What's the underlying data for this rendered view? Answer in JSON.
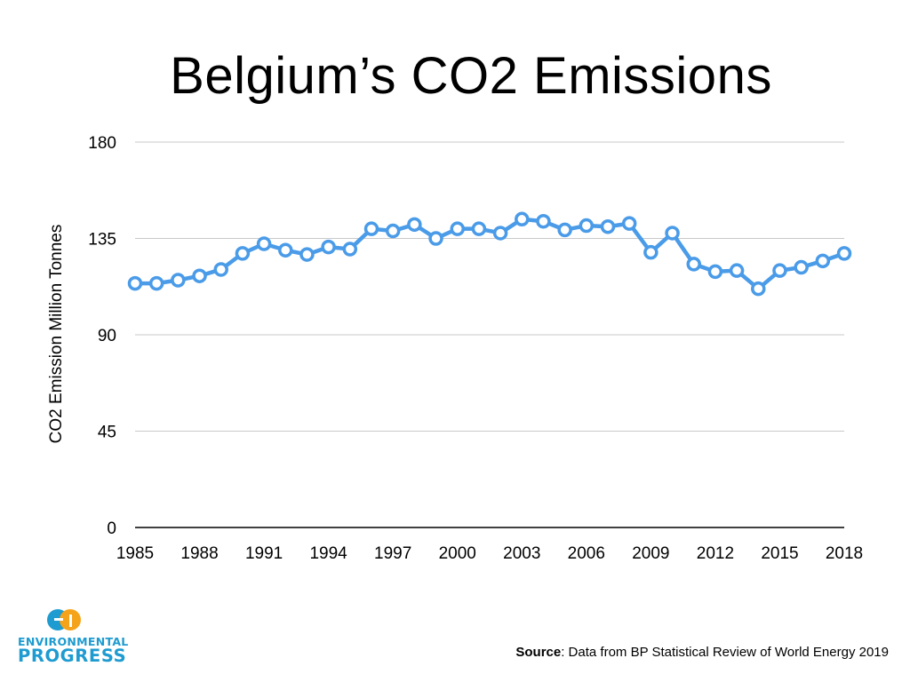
{
  "colors": {
    "line": "#4a9be8",
    "grid": "#c8c8c8",
    "axis": "#000000",
    "logo": "#1e9bd0",
    "logo_accent": "#f5a31a"
  },
  "chart_data": {
    "type": "line",
    "title": "Belgium’s CO2 Emissions",
    "xlabel": "",
    "ylabel": "CO2 Emission Million Tonnes",
    "ylim": [
      0,
      180
    ],
    "yticks": [
      0,
      45,
      90,
      135,
      180
    ],
    "xticks": [
      1985,
      1988,
      1991,
      1994,
      1997,
      2000,
      2003,
      2006,
      2009,
      2012,
      2015,
      2018
    ],
    "xlim": [
      1985,
      2018
    ],
    "grid": true,
    "series": [
      {
        "name": "Belgium",
        "x": [
          1985,
          1986,
          1987,
          1988,
          1989,
          1990,
          1991,
          1992,
          1993,
          1994,
          1995,
          1996,
          1997,
          1998,
          1999,
          2000,
          2001,
          2002,
          2003,
          2004,
          2005,
          2006,
          2007,
          2008,
          2009,
          2010,
          2011,
          2012,
          2013,
          2014,
          2015,
          2016,
          2017,
          2018
        ],
        "values": [
          114,
          114,
          115.5,
          117.5,
          120.5,
          128,
          132.5,
          129.5,
          127.5,
          131,
          130,
          139.5,
          138.5,
          141.5,
          135,
          139.5,
          139.5,
          137.5,
          144,
          143,
          139,
          141,
          140.5,
          142,
          128.5,
          137.5,
          123,
          119.5,
          120,
          111.5,
          120,
          121.5,
          124.5,
          128
        ]
      }
    ]
  },
  "logo": {
    "line1": "ENVIRONMENTAL",
    "line2": "PROGRESS"
  },
  "source": {
    "label": "Source",
    "text": ": Data from BP Statistical Review of World Energy 2019"
  }
}
